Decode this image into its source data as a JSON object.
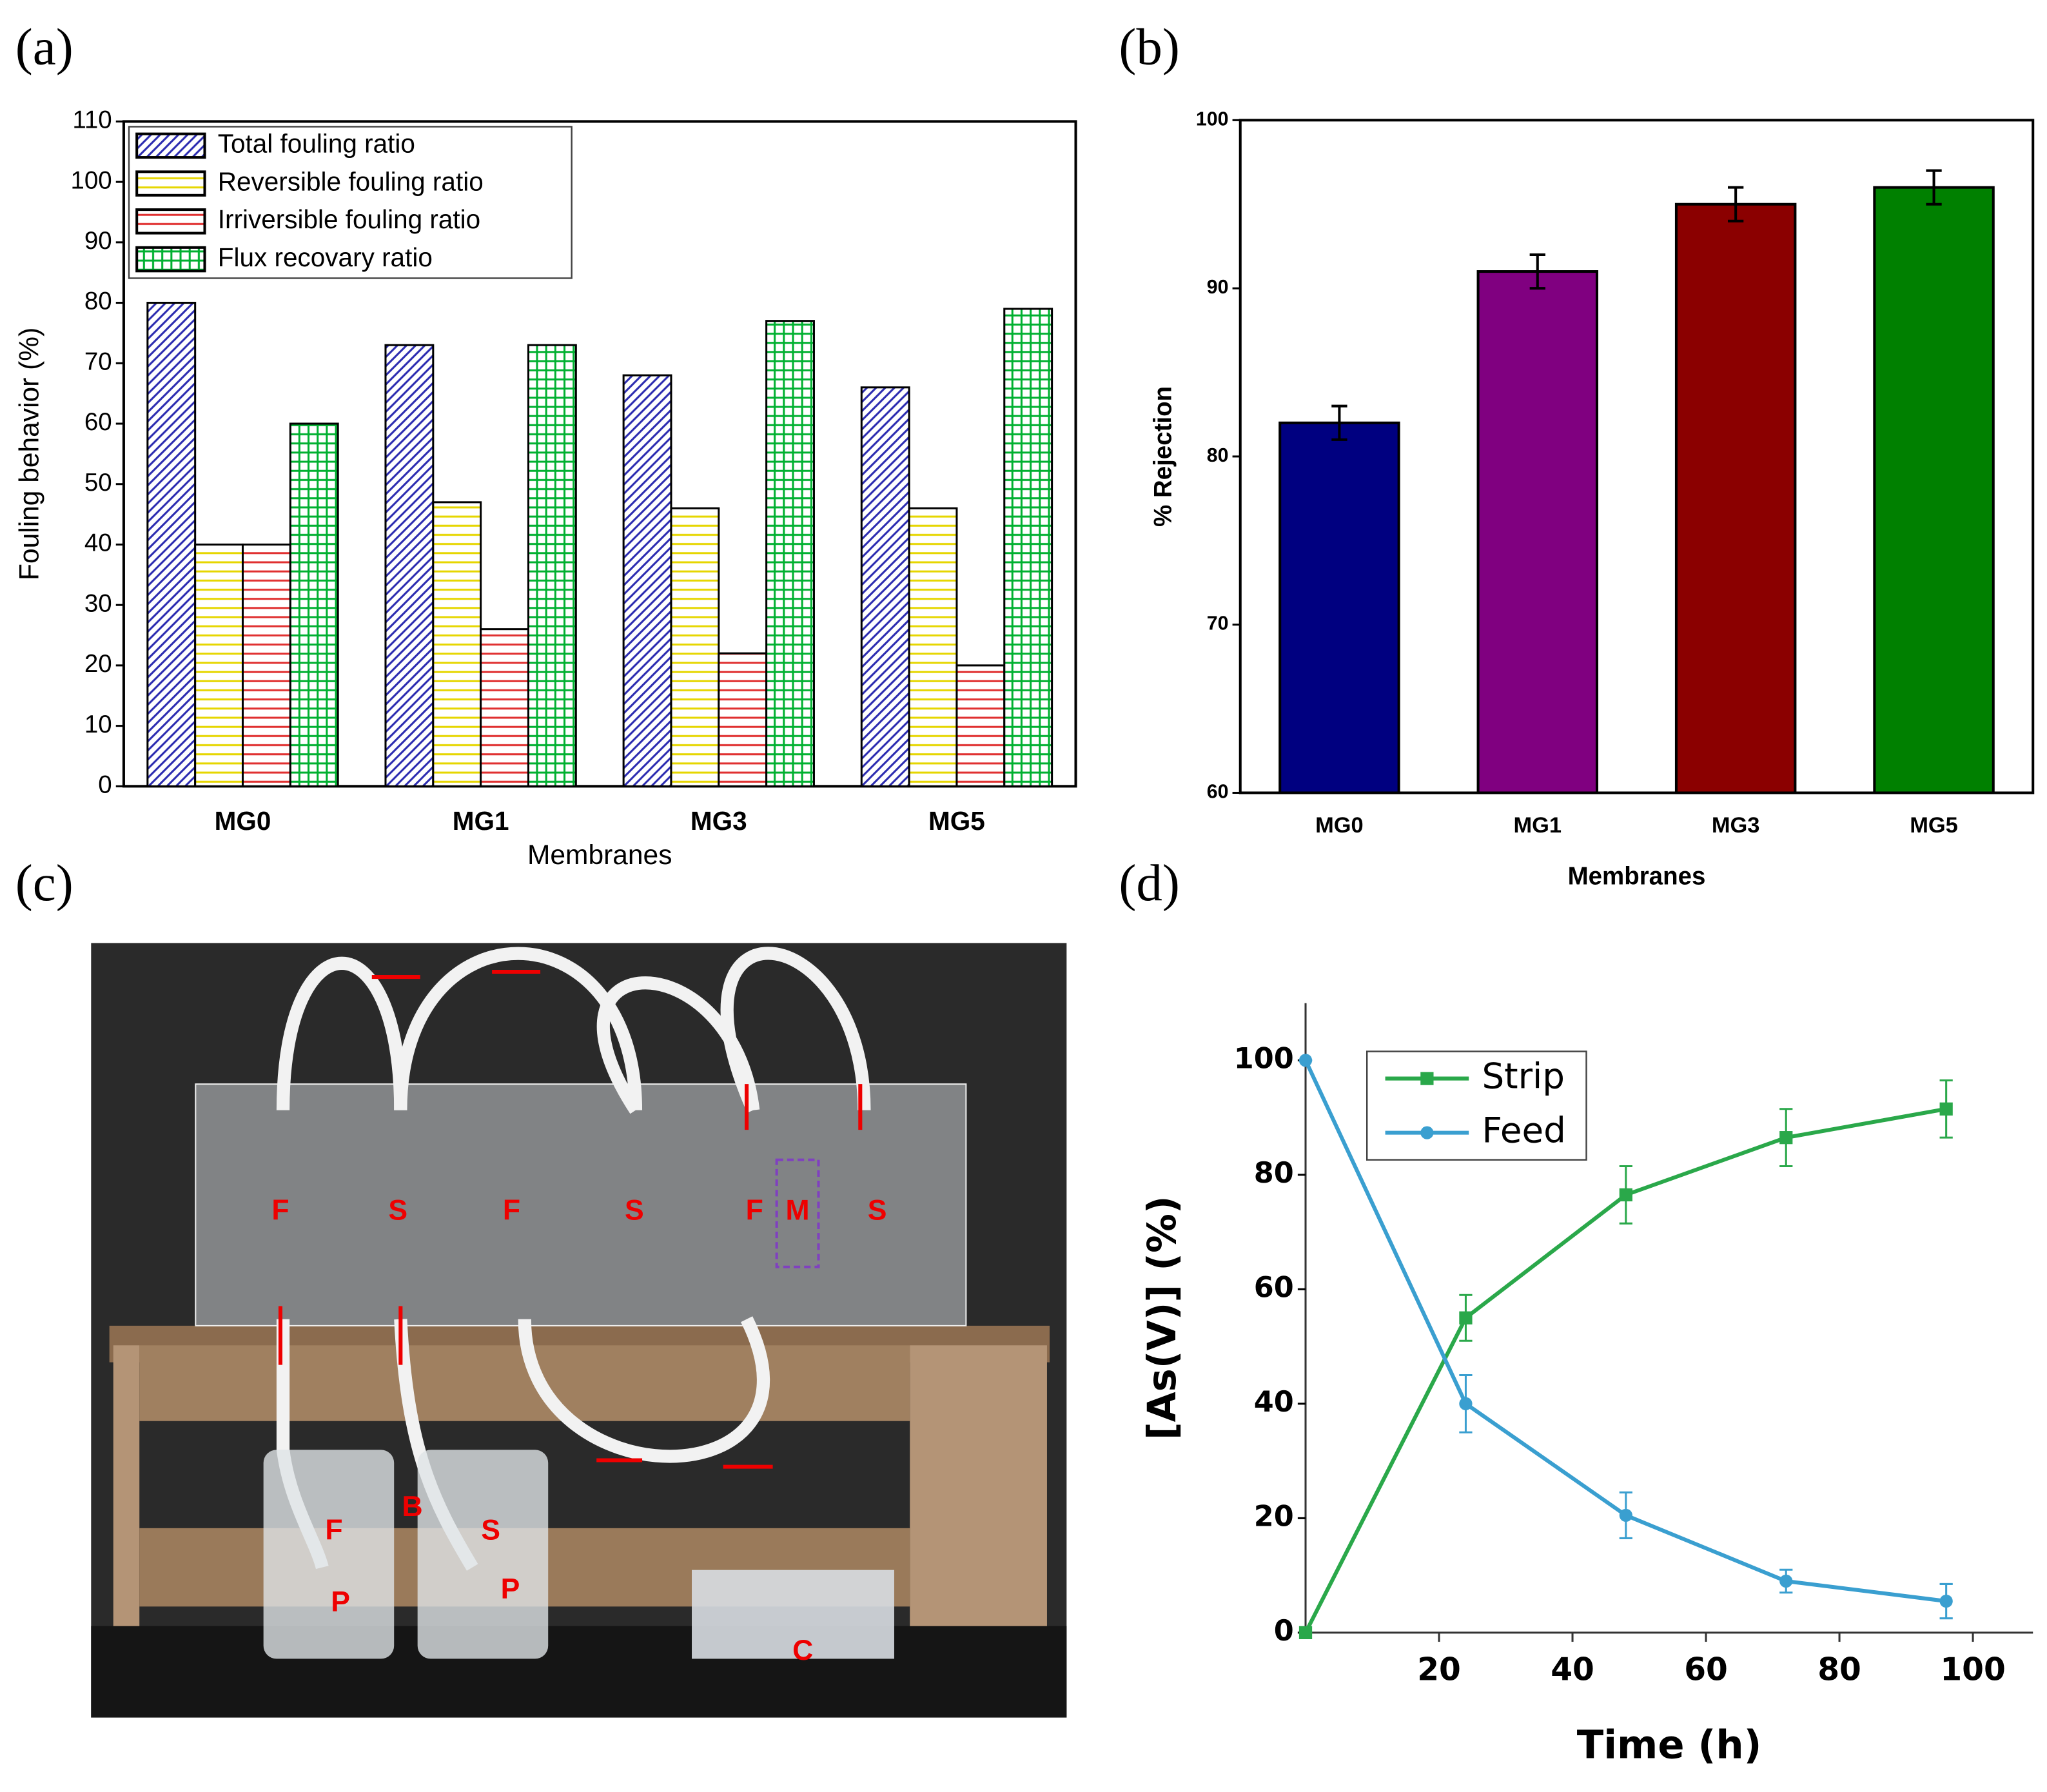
{
  "chart_data": [
    {
      "type": "bar",
      "panel_label": "(a)",
      "ylabel": "Fouling behavior (%)",
      "xlabel": "Membranes",
      "categories": [
        "MG0",
        "MG1",
        "MG3",
        "MG5"
      ],
      "series": [
        {
          "name": "Total fouling ratio",
          "color": "#2b2bb0",
          "hatch": "diagonal",
          "values": [
            80,
            73,
            68,
            66
          ]
        },
        {
          "name": "Reversible fouling ratio",
          "color": "#e6d600",
          "hatch": "horizontal",
          "values": [
            40,
            47,
            46,
            46
          ]
        },
        {
          "name": "Irriversible fouling ratio",
          "color": "#e03030",
          "hatch": "horizontal",
          "values": [
            40,
            26,
            22,
            20
          ]
        },
        {
          "name": "Flux recovary ratio",
          "color": "#00b030",
          "hatch": "grid",
          "values": [
            60,
            73,
            77,
            79
          ]
        }
      ],
      "ylim": [
        0,
        110
      ],
      "yticks": [
        0,
        10,
        20,
        30,
        40,
        50,
        60,
        70,
        80,
        90,
        100,
        110
      ],
      "grid": false,
      "legend": "upper left"
    },
    {
      "type": "bar",
      "panel_label": "(b)",
      "ylabel": "% Rejection",
      "xlabel": "Membranes",
      "categories": [
        "MG0",
        "MG1",
        "MG3",
        "MG5"
      ],
      "values": [
        82,
        91,
        95,
        96
      ],
      "errors": [
        1,
        1,
        1,
        1
      ],
      "colors": [
        "#000080",
        "#800080",
        "#8b0000",
        "#008000"
      ],
      "ylim": [
        60,
        100
      ],
      "yticks": [
        60,
        70,
        80,
        90,
        100
      ],
      "grid": false
    },
    {
      "type": "line",
      "panel_label": "(d)",
      "ylabel": "[As(V)] (%)",
      "xlabel": "Time (h)",
      "x": [
        0,
        24,
        48,
        72,
        96
      ],
      "series": [
        {
          "name": "Strip",
          "color": "#2aa84a",
          "marker": "square",
          "values": [
            0,
            55,
            76.5,
            86.5,
            91.5
          ],
          "errors": [
            0,
            4,
            5,
            5,
            5
          ]
        },
        {
          "name": "Feed",
          "color": "#3a9fd0",
          "marker": "circle",
          "values": [
            100,
            40,
            20.5,
            9,
            5.5
          ],
          "errors": [
            0,
            5,
            4,
            2,
            3
          ]
        }
      ],
      "xlim": [
        0,
        109
      ],
      "xticks": [
        20,
        40,
        60,
        80,
        100
      ],
      "ylim": [
        0,
        110
      ],
      "yticks": [
        0,
        20,
        40,
        60,
        80,
        100
      ],
      "grid": false,
      "legend": "upper left"
    }
  ],
  "photo": {
    "panel_label": "(c)",
    "labels": [
      "F",
      "S",
      "F",
      "S",
      "F",
      "M",
      "S",
      "B",
      "F",
      "S",
      "P",
      "P",
      "C"
    ]
  }
}
